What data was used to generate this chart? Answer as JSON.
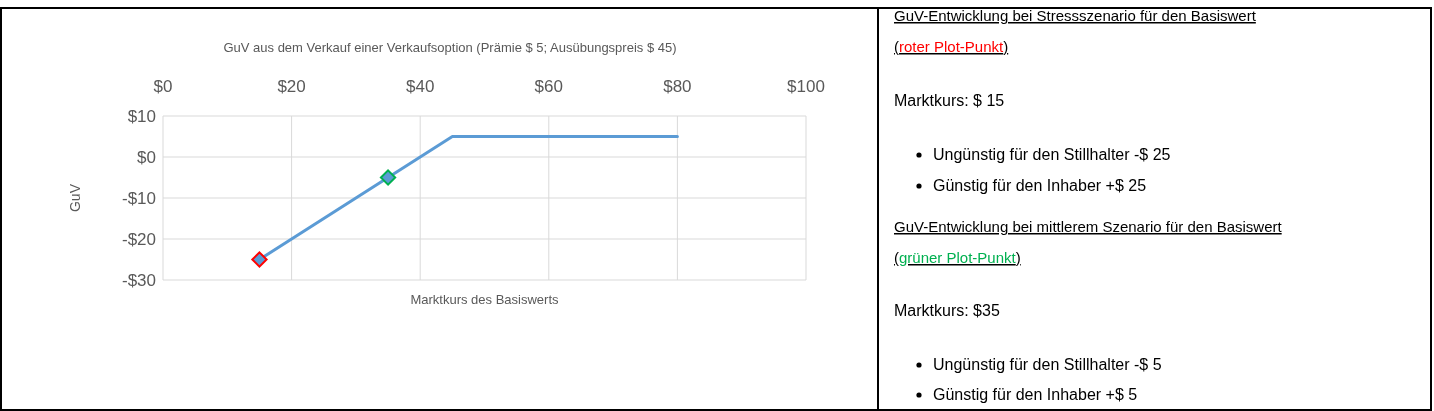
{
  "chart_data": [
    {
      "type": "line",
      "title": "GuV aus dem Verkauf einer Verkaufsoption (Prämie $ 5; Ausübungspreis $ 45)",
      "xlabel": "Marktkurs des Basiswerts",
      "ylabel": "GuV",
      "xlim": [
        0,
        100
      ],
      "xticks": [
        {
          "value": 0,
          "label": "$0"
        },
        {
          "value": 20,
          "label": "$20"
        },
        {
          "value": 40,
          "label": "$40"
        },
        {
          "value": 60,
          "label": "$60"
        },
        {
          "value": 80,
          "label": "$80"
        },
        {
          "value": 100,
          "label": "$100"
        }
      ],
      "ylim": [
        -30,
        10
      ],
      "yticks": [
        {
          "value": -30,
          "label": "-$30"
        },
        {
          "value": -20,
          "label": "-$20"
        },
        {
          "value": -10,
          "label": "-$10"
        },
        {
          "value": 0,
          "label": "$0"
        },
        {
          "value": 10,
          "label": "$10"
        }
      ],
      "grid": true,
      "series": [
        {
          "type": "line",
          "color": "#5b9bd5",
          "x": [
            15,
            45,
            80
          ],
          "values": [
            -25,
            5,
            5
          ]
        },
        {
          "type": "scatter",
          "color": "#5b9bd5",
          "colors": [
            "#ff0000",
            "#00b050"
          ],
          "x": [
            15,
            35
          ],
          "values": [
            -25,
            -5
          ],
          "marker": "diamond"
        }
      ]
    },
    {
      "type": "other",
      "annotations": [
        "GuV-Entwicklung bei Stressszenario für den Basiswert (roter Plot-Punkt)",
        "Marktkurs: $ 15",
        "Ungünstig für den Stillhalter -$ 25",
        "Günstig für den Inhaber +$ 25",
        "GuV-Entwicklung bei mittlerem Szenario für den Basiswert (grüner Plot-Punkt)",
        "Marktkurs: $35",
        "Ungünstig für den Stillhalter -$ 5",
        "Günstig für den Inhaber +$ 5"
      ]
    }
  ]
}
